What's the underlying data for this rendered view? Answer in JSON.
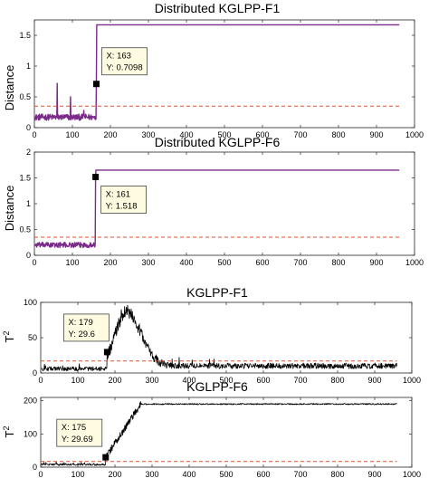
{
  "colors": {
    "purple": "#7b2a8a",
    "black": "#000000",
    "threshold": "#e0502a",
    "datatip_bg": "#fffbe0"
  },
  "chart_data": [
    {
      "type": "line",
      "title": "Distributed KGLPP-F1",
      "ylabel": "Distance",
      "xlim": [
        0,
        1000
      ],
      "ylim": [
        0,
        1.75
      ],
      "xticks": [
        0,
        100,
        200,
        300,
        400,
        500,
        600,
        700,
        800,
        900,
        1000
      ],
      "yticks": [
        0,
        0.5,
        1,
        1.5
      ],
      "ytick_labels": [
        "0",
        "0.5",
        "1",
        "1.5"
      ],
      "series_color": "#7b2a8a",
      "threshold": 0.35,
      "pre_fault_level": 0.17,
      "pre_fault_noise": 0.05,
      "spikes": [
        [
          60,
          0.72
        ],
        [
          95,
          0.5
        ],
        [
          130,
          0.28
        ]
      ],
      "post_fault_level": 1.67,
      "fault_index": 163,
      "n_samples": 960,
      "datatip": {
        "x": 163,
        "y": 0.7098,
        "x_label": "X: 163",
        "y_label": "Y: 0.7098"
      }
    },
    {
      "type": "line",
      "title": "Distributed KGLPP-F6",
      "ylabel": "Distance",
      "xlim": [
        0,
        1000
      ],
      "ylim": [
        0,
        2
      ],
      "xticks": [
        0,
        100,
        200,
        300,
        400,
        500,
        600,
        700,
        800,
        900,
        1000
      ],
      "yticks": [
        0,
        0.5,
        1,
        1.5,
        2
      ],
      "ytick_labels": [
        "0",
        "0.5",
        "1",
        "1.5",
        "2"
      ],
      "series_color": "#7b2a8a",
      "threshold": 0.35,
      "pre_fault_level": 0.2,
      "pre_fault_noise": 0.05,
      "spikes": [],
      "post_fault_level": 1.65,
      "fault_index": 161,
      "n_samples": 960,
      "datatip": {
        "x": 161,
        "y": 1.518,
        "x_label": "X: 161",
        "y_label": "Y: 1.518"
      }
    },
    {
      "type": "line",
      "title": "KGLPP-F1",
      "ylabel": "T",
      "ylabel_sup": "2",
      "xlim": [
        0,
        1000
      ],
      "ylim": [
        0,
        100
      ],
      "xticks": [
        0,
        100,
        200,
        300,
        400,
        500,
        600,
        700,
        800,
        900,
        1000
      ],
      "yticks": [
        0,
        50,
        100
      ],
      "ytick_labels": [
        "0",
        "50",
        "100"
      ],
      "series_color": "#000000",
      "threshold": 17,
      "pre_fault_level": 6,
      "pre_fault_noise": 3,
      "peak_index": 230,
      "peak_value": 88,
      "post_fault_level": 10,
      "post_fault_noise": 4,
      "fault_index": 179,
      "n_samples": 960,
      "datatip": {
        "x": 179,
        "y": 29.6,
        "x_label": "X: 179",
        "y_label": "Y: 29.6"
      }
    },
    {
      "type": "line",
      "title": "KGLPP-F6",
      "ylabel": "T",
      "ylabel_sup": "2",
      "xlim": [
        0,
        1000
      ],
      "ylim": [
        0,
        210
      ],
      "xticks": [
        0,
        100,
        200,
        300,
        400,
        500,
        600,
        700,
        800,
        900,
        1000
      ],
      "yticks": [
        0,
        100,
        200
      ],
      "ytick_labels": [
        "0",
        "100",
        "200"
      ],
      "series_color": "#000000",
      "threshold": 17,
      "pre_fault_level": 8,
      "pre_fault_noise": 3,
      "ramp_end_index": 270,
      "post_fault_level": 190,
      "post_fault_noise": 2,
      "fault_index": 175,
      "n_samples": 960,
      "datatip": {
        "x": 175,
        "y": 29.69,
        "x_label": "X: 175",
        "y_label": "Y: 29.69"
      }
    }
  ]
}
